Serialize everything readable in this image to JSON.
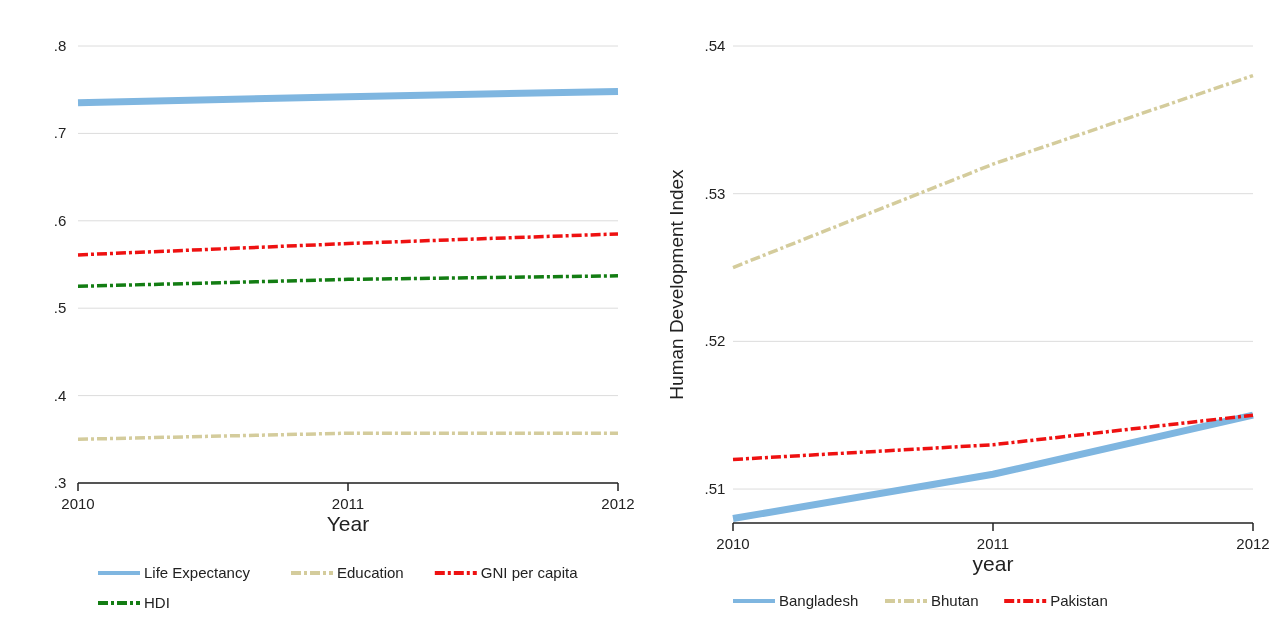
{
  "chart_data": [
    {
      "type": "line",
      "xlabel": "Year",
      "x": [
        2010,
        2011,
        2012
      ],
      "xlim": [
        2010,
        2012
      ],
      "xticks": [
        2010,
        2011,
        2012
      ],
      "ylim": [
        0.3,
        0.8
      ],
      "yticks": [
        {
          "value": 0.3,
          "label": ".3"
        },
        {
          "value": 0.4,
          "label": ".4"
        },
        {
          "value": 0.5,
          "label": ".5"
        },
        {
          "value": 0.6,
          "label": ".6"
        },
        {
          "value": 0.7,
          "label": ".7"
        },
        {
          "value": 0.8,
          "label": ".8"
        }
      ],
      "grid": "y",
      "legend": "bottom",
      "series": [
        {
          "name": "Life Expectancy",
          "color": "#7fb6e0",
          "values": [
            0.735,
            0.742,
            0.748
          ]
        },
        {
          "name": "Education",
          "color": "#d4cc9c",
          "line_style": "dashed",
          "values": [
            0.35,
            0.357,
            0.357
          ]
        },
        {
          "name": "GNI per capita",
          "color": "#ee1111",
          "line_style": "dashed",
          "values": [
            0.561,
            0.574,
            0.585
          ]
        },
        {
          "name": "HDI",
          "color": "#137d13",
          "line_style": "dashed",
          "values": [
            0.525,
            0.533,
            0.537
          ]
        }
      ]
    },
    {
      "type": "line",
      "xlabel": "year",
      "ylabel": "Human Development Index",
      "x": [
        2010,
        2011,
        2012
      ],
      "xlim": [
        2010,
        2012
      ],
      "xticks": [
        2010,
        2011,
        2012
      ],
      "ylim": [
        0.5077,
        0.54
      ],
      "yticks": [
        {
          "value": 0.51,
          "label": ".51"
        },
        {
          "value": 0.52,
          "label": ".52"
        },
        {
          "value": 0.53,
          "label": ".53"
        },
        {
          "value": 0.54,
          "label": ".54"
        }
      ],
      "grid": "y",
      "legend": "bottom",
      "series": [
        {
          "name": "Bangladesh",
          "color": "#7fb6e0",
          "values": [
            0.508,
            0.511,
            0.515
          ]
        },
        {
          "name": "Bhutan",
          "color": "#d4cc9c",
          "line_style": "dashed",
          "values": [
            0.525,
            0.532,
            0.538
          ]
        },
        {
          "name": "Pakistan",
          "color": "#ee1111",
          "line_style": "dashed",
          "values": [
            0.512,
            0.513,
            0.515
          ]
        }
      ]
    }
  ]
}
